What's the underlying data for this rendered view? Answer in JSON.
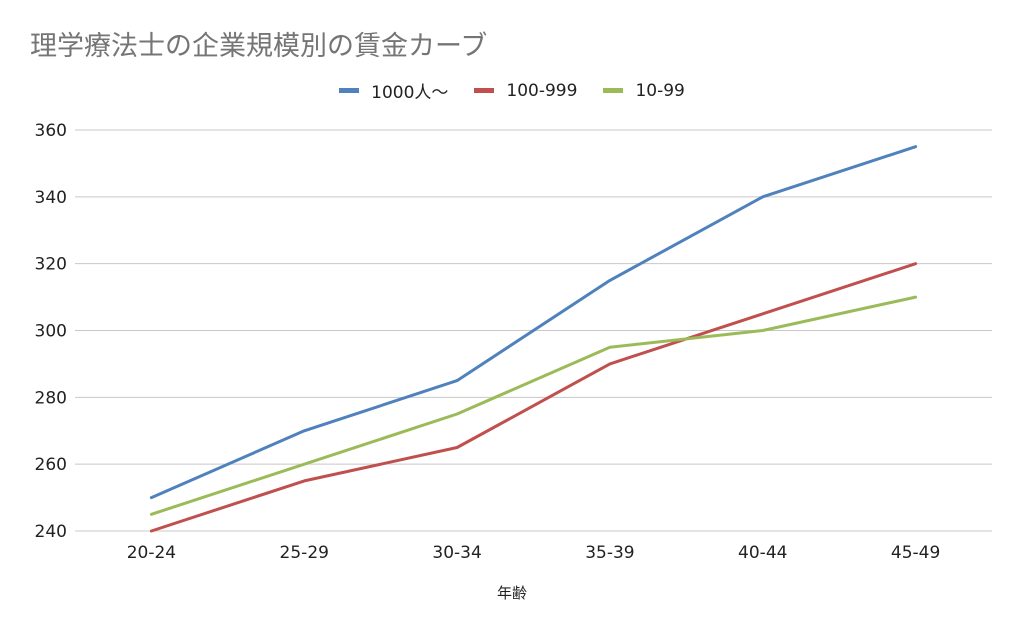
{
  "chart_data": {
    "type": "line",
    "title": "理学療法士の企業規模別の賃金カーブ",
    "xlabel": "年齢",
    "ylabel": "",
    "categories": [
      "20-24",
      "25-29",
      "30-34",
      "35-39",
      "40-44",
      "45-49"
    ],
    "ylim": [
      240,
      360
    ],
    "yticks": [
      240,
      260,
      280,
      300,
      320,
      340,
      360
    ],
    "grid": true,
    "legend_position": "top",
    "series": [
      {
        "name": "1000人〜",
        "color": "#4f81bd",
        "values": [
          250,
          270,
          285,
          315,
          340,
          355
        ]
      },
      {
        "name": "100-999",
        "color": "#c0504d",
        "values": [
          240,
          255,
          265,
          290,
          305,
          320
        ]
      },
      {
        "name": "10-99",
        "color": "#9bbb59",
        "values": [
          245,
          260,
          275,
          295,
          300,
          310
        ]
      }
    ]
  }
}
